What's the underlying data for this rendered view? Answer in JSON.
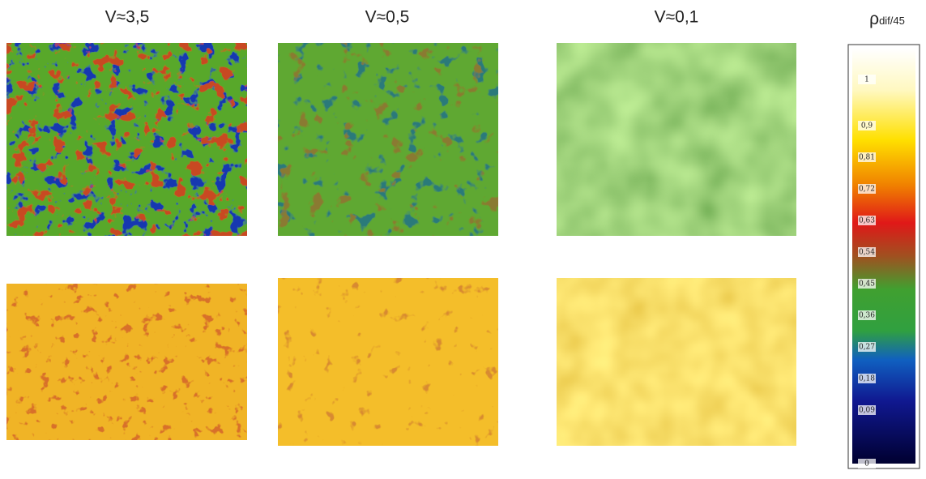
{
  "columns": [
    {
      "label": "V≈3,5"
    },
    {
      "label": "V≈0,5"
    },
    {
      "label": "V≈0,1"
    }
  ],
  "colorbar": {
    "title": "ρ",
    "title_sub": "dif/45",
    "labels": [
      "1",
      "0,9",
      "0,81",
      "0,72",
      "0,63",
      "0,54",
      "0,45",
      "0,36",
      "0,27",
      "0,18",
      "0,09",
      "0"
    ]
  }
}
